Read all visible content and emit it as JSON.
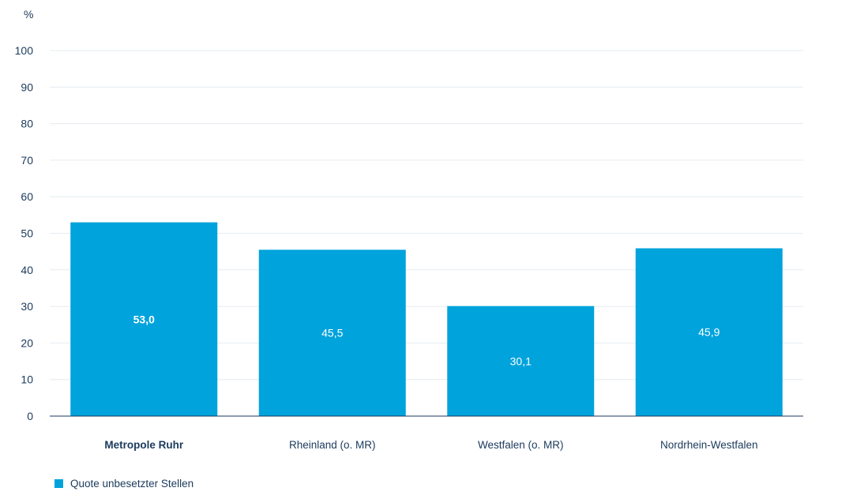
{
  "chart_data": {
    "type": "bar",
    "ylabel": "%",
    "categories": [
      "Metropole Ruhr",
      "Rheinland (o. MR)",
      "Westfalen (o. MR)",
      "Nordrhein-Westfalen"
    ],
    "series": [
      {
        "name": "Quote unbesetzter Stellen",
        "values": [
          53.0,
          45.5,
          30.1,
          45.9
        ],
        "labels": [
          "53,0",
          "45,5",
          "30,1",
          "45,9"
        ],
        "color": "#00a3dc"
      }
    ],
    "highlight_category": "Metropole Ruhr",
    "yticks": [
      "0",
      "10",
      "20",
      "30",
      "40",
      "50",
      "60",
      "70",
      "80",
      "90",
      "100"
    ],
    "ylim": [
      0,
      100
    ],
    "grid": true,
    "legend_position": "bottom-left"
  }
}
